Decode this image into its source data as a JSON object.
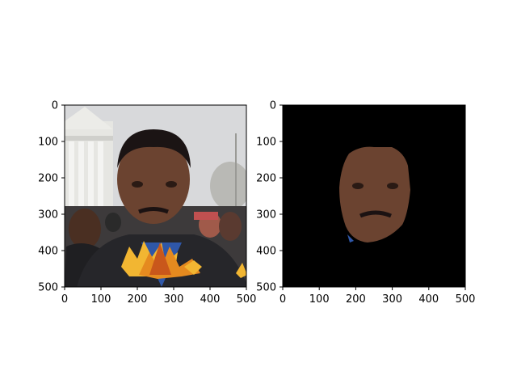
{
  "chart_data": [
    {
      "type": "image",
      "image_size": [
        500,
        500
      ],
      "xlim": [
        0,
        500
      ],
      "ylim": [
        500,
        0
      ],
      "xticks": [
        0,
        100,
        200,
        300,
        400,
        500
      ],
      "yticks": [
        0,
        100,
        200,
        300,
        400,
        500
      ],
      "xtick_labels": [
        "0",
        "100",
        "200",
        "300",
        "400",
        "500"
      ],
      "ytick_labels": [
        "0",
        "100",
        "200",
        "300",
        "400",
        "500"
      ],
      "content": "photo-with-leaf-overlay"
    },
    {
      "type": "image",
      "image_size": [
        500,
        500
      ],
      "xlim": [
        0,
        500
      ],
      "ylim": [
        500,
        0
      ],
      "xticks": [
        0,
        100,
        200,
        300,
        400,
        500
      ],
      "yticks": [
        0,
        100,
        200,
        300,
        400,
        500
      ],
      "xtick_labels": [
        "0",
        "100",
        "200",
        "300",
        "400",
        "500"
      ],
      "ytick_labels": [
        "0",
        "100",
        "200",
        "300",
        "400",
        "500"
      ],
      "content": "face-mask-on-black",
      "background_color": "#000000"
    }
  ],
  "colors": {
    "sky": "#dcdcdc",
    "building": "#e8e8e4",
    "coat": "#2a2a2e",
    "skin": "#6b4330",
    "shirt": "#2f57a8",
    "leaf_orange": "#e58a1f",
    "leaf_yellow": "#f2b632",
    "mask_bg": "#000000"
  }
}
